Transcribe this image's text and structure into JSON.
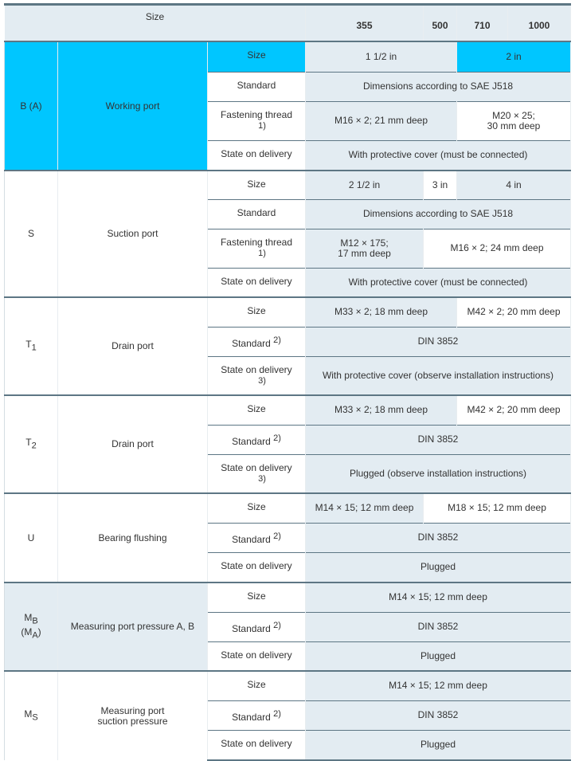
{
  "header": {
    "label": "Size",
    "sizes": [
      "355",
      "500",
      "710",
      "1000"
    ]
  },
  "colors": {
    "cyan": "#00c6ff",
    "gray": "#e3ecf2",
    "white": "#ffffff",
    "rule": "#5d7684"
  },
  "groups": [
    {
      "code": "B (A)",
      "name": "Working port",
      "bg": "cyan",
      "rows": [
        {
          "param": "Size",
          "pbg": "cyan",
          "cells": [
            {
              "text": "1 1/2 in",
              "span": 2,
              "bg": "gray"
            },
            {
              "text": "2 in",
              "span": 2,
              "bg": "cyan"
            }
          ]
        },
        {
          "param": "Standard",
          "pbg": "white",
          "cells": [
            {
              "text": "Dimensions according to SAE J518",
              "span": 4,
              "bg": "gray"
            }
          ]
        },
        {
          "param": "Fastening thread",
          "note": "1)",
          "note_style": "below",
          "pbg": "white",
          "cells": [
            {
              "text": "M16 × 2; 21 mm deep",
              "span": 2,
              "bg": "gray"
            },
            {
              "text": "M20 × 25;",
              "text2": "30 mm deep",
              "span": 2,
              "bg": "white"
            }
          ]
        },
        {
          "param": "State on delivery",
          "pbg": "white",
          "cells": [
            {
              "text": "With protective cover (must be connected)",
              "span": 4,
              "bg": "gray"
            }
          ]
        }
      ]
    },
    {
      "code": "S",
      "name": "Suction port",
      "bg": "white",
      "rows": [
        {
          "param": "Size",
          "pbg": "white",
          "cells": [
            {
              "text": "2 1/2 in",
              "span": 1,
              "bg": "gray"
            },
            {
              "text": "3 in",
              "span": 1,
              "bg": "white"
            },
            {
              "text": "4 in",
              "span": 2,
              "bg": "gray"
            }
          ]
        },
        {
          "param": "Standard",
          "pbg": "white",
          "cells": [
            {
              "text": "Dimensions according to SAE J518",
              "span": 4,
              "bg": "gray"
            }
          ]
        },
        {
          "param": "Fastening thread",
          "note": "1)",
          "note_style": "below",
          "pbg": "white",
          "cells": [
            {
              "text": "M12 × 175;",
              "text2": "17 mm deep",
              "span": 1,
              "bg": "gray"
            },
            {
              "text": "M16 × 2; 24 mm deep",
              "span": 3,
              "bg": "white"
            }
          ]
        },
        {
          "param": "State on delivery",
          "pbg": "white",
          "cells": [
            {
              "text": "With protective cover (must be connected)",
              "span": 4,
              "bg": "gray"
            }
          ]
        }
      ]
    },
    {
      "code": "T",
      "code_sub": "1",
      "name": "Drain port",
      "bg": "white",
      "rows": [
        {
          "param": "Size",
          "pbg": "white",
          "cells": [
            {
              "text": "M33 × 2; 18 mm deep",
              "span": 2,
              "bg": "gray"
            },
            {
              "text": "M42 × 2; 20 mm deep",
              "span": 2,
              "bg": "white"
            }
          ]
        },
        {
          "param": "Standard",
          "note": "2)",
          "note_style": "sup",
          "pbg": "white",
          "cells": [
            {
              "text": "DIN 3852",
              "span": 4,
              "bg": "gray"
            }
          ]
        },
        {
          "param": "State on delivery",
          "note": "3)",
          "note_style": "below",
          "pbg": "white",
          "cells": [
            {
              "text": "With protective cover (observe installation instructions)",
              "span": 4,
              "bg": "gray"
            }
          ]
        }
      ]
    },
    {
      "code": "T",
      "code_sub": "2",
      "name": "Drain port",
      "bg": "white",
      "rows": [
        {
          "param": "Size",
          "pbg": "white",
          "cells": [
            {
              "text": "M33 × 2; 18 mm deep",
              "span": 2,
              "bg": "gray"
            },
            {
              "text": "M42 × 2; 20 mm deep",
              "span": 2,
              "bg": "white"
            }
          ]
        },
        {
          "param": "Standard",
          "note": "2)",
          "note_style": "sup",
          "pbg": "white",
          "cells": [
            {
              "text": "DIN 3852",
              "span": 4,
              "bg": "gray"
            }
          ]
        },
        {
          "param": "State on delivery",
          "note": "3)",
          "note_style": "below",
          "pbg": "white",
          "cells": [
            {
              "text": "Plugged (observe installation instructions)",
              "span": 4,
              "bg": "gray"
            }
          ]
        }
      ]
    },
    {
      "code": "U",
      "name": "Bearing flushing",
      "bg": "white",
      "rows": [
        {
          "param": "Size",
          "pbg": "white",
          "cells": [
            {
              "text": "M14 × 15; 12 mm deep",
              "span": 1,
              "bg": "gray"
            },
            {
              "text": "M18 × 15; 12 mm deep",
              "span": 3,
              "bg": "white"
            }
          ]
        },
        {
          "param": "Standard",
          "note": "2)",
          "note_style": "sup",
          "pbg": "white",
          "cells": [
            {
              "text": "DIN 3852",
              "span": 4,
              "bg": "gray"
            }
          ]
        },
        {
          "param": "State on delivery",
          "pbg": "white",
          "cells": [
            {
              "text": "Plugged",
              "span": 4,
              "bg": "gray"
            }
          ]
        }
      ]
    },
    {
      "code": "M",
      "code_sub": "B",
      "code2": "(M",
      "code2_sub": "A",
      "code2_end": ")",
      "name": "Measuring port pressure A, B",
      "bg": "gray",
      "rows": [
        {
          "param": "Size",
          "pbg": "white",
          "cells": [
            {
              "text": "M14 × 15; 12 mm deep",
              "span": 4,
              "bg": "gray"
            }
          ]
        },
        {
          "param": "Standard",
          "note": "2)",
          "note_style": "sup",
          "pbg": "white",
          "cells": [
            {
              "text": "DIN 3852",
              "span": 4,
              "bg": "gray"
            }
          ]
        },
        {
          "param": "State on delivery",
          "pbg": "white",
          "cells": [
            {
              "text": "Plugged",
              "span": 4,
              "bg": "gray"
            }
          ]
        }
      ]
    },
    {
      "code": "M",
      "code_sub": "S",
      "name": "Measuring port",
      "name2": "suction pressure",
      "bg": "white",
      "rows": [
        {
          "param": "Size",
          "pbg": "white",
          "cells": [
            {
              "text": "M14 × 15; 12 mm deep",
              "span": 4,
              "bg": "gray"
            }
          ]
        },
        {
          "param": "Standard",
          "note": "2)",
          "note_style": "sup",
          "pbg": "white",
          "cells": [
            {
              "text": "DIN 3852",
              "span": 4,
              "bg": "gray"
            }
          ]
        },
        {
          "param": "State on delivery",
          "pbg": "white",
          "cells": [
            {
              "text": "Plugged",
              "span": 4,
              "bg": "gray"
            }
          ]
        }
      ]
    }
  ]
}
